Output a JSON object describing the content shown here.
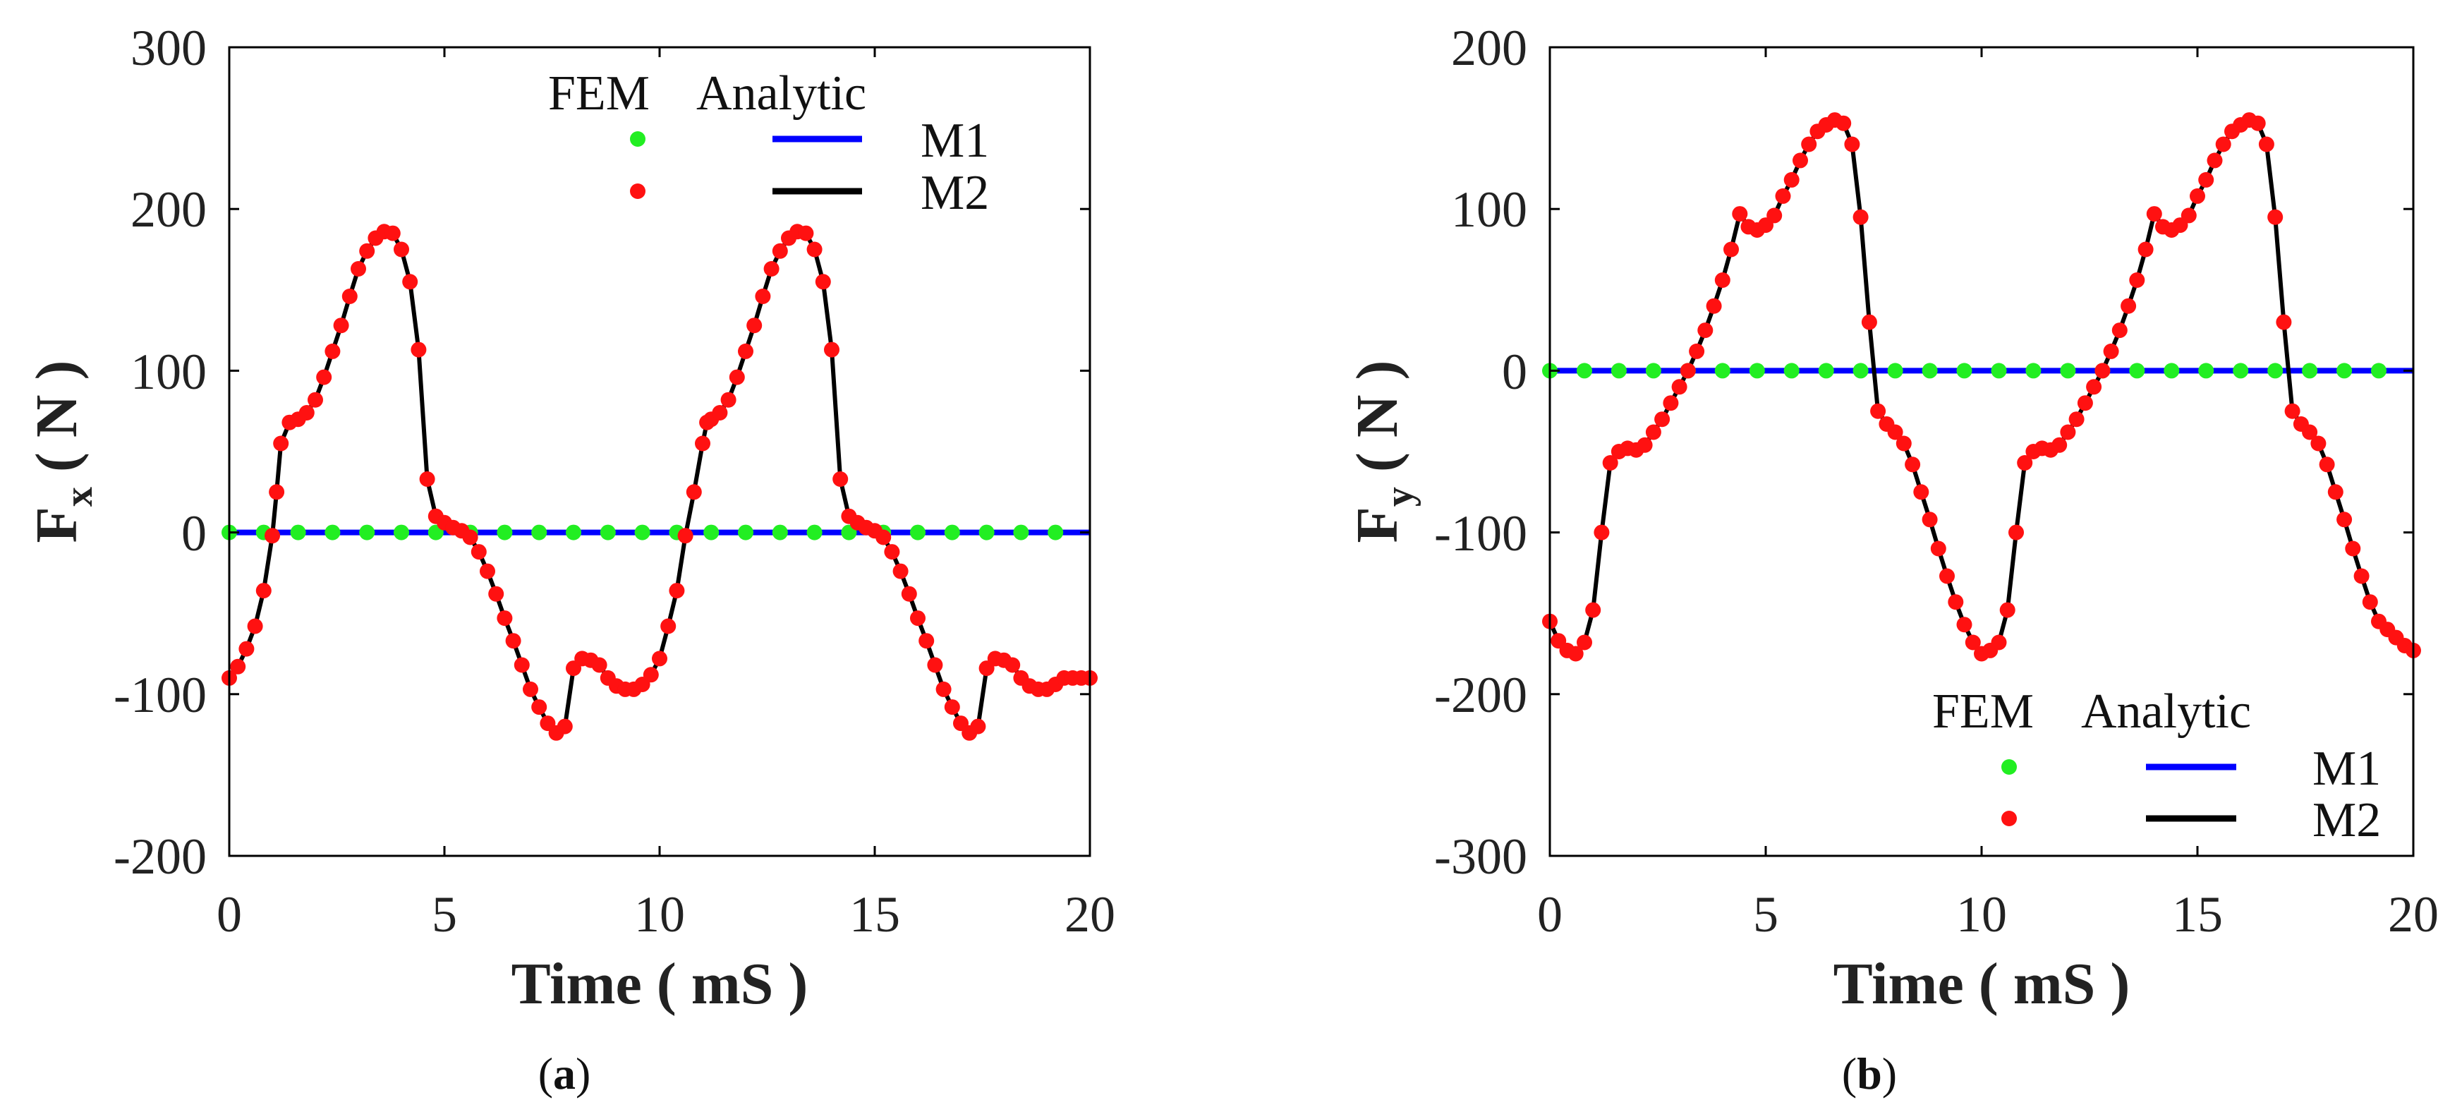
{
  "chart_data": [
    {
      "type": "line",
      "panel": "(a)",
      "caption_text": "a",
      "xlabel": "Time ( mS )",
      "ylabel_main": "F",
      "ylabel_sub": "x",
      "ylabel_unit": "( N )",
      "xlim": [
        0,
        20
      ],
      "ylim": [
        -200,
        300
      ],
      "xticks": [
        0,
        5,
        10,
        15,
        20
      ],
      "yticks": [
        -200,
        -100,
        0,
        100,
        200,
        300
      ],
      "xtick_labels": [
        "0",
        "5",
        "10",
        "15",
        "20"
      ],
      "ytick_labels": [
        "-200",
        "-100",
        "0",
        "100",
        "200",
        "300"
      ],
      "legend": {
        "placement": "top-right",
        "header_fem": "FEM",
        "header_analytic": "Analytic",
        "entries": [
          {
            "name": "M1",
            "fem_color": "#22ee22",
            "line_color": "#0000ff"
          },
          {
            "name": "M2",
            "fem_color": "#ff1111",
            "line_color": "#000000"
          }
        ]
      },
      "series": [
        {
          "name": "M1",
          "color": "#0000ff",
          "marker_color": "#22ee22",
          "x": [
            0,
            0.8,
            1.6,
            2.4,
            3.2,
            4.0,
            4.8,
            5.6,
            6.4,
            7.2,
            8.0,
            8.8,
            9.6,
            10.4,
            11.2,
            12.0,
            12.8,
            13.6,
            14.4,
            15.2,
            16.0,
            16.8,
            17.6,
            18.4,
            19.2
          ],
          "y": [
            0,
            0,
            0,
            0,
            0,
            0,
            0,
            0,
            0,
            0,
            0,
            0,
            0,
            0,
            0,
            0,
            0,
            0,
            0,
            0,
            0,
            0,
            0,
            0,
            0
          ]
        },
        {
          "name": "M2",
          "color": "#000000",
          "marker_color": "#ff1111",
          "x": [
            0,
            0.2,
            0.4,
            0.6,
            0.8,
            1.0,
            1.1,
            1.2,
            1.4,
            1.6,
            1.8,
            2.0,
            2.2,
            2.4,
            2.6,
            2.8,
            3.0,
            3.2,
            3.4,
            3.6,
            3.8,
            4.0,
            4.2,
            4.4,
            4.6,
            4.8,
            5.0,
            5.2,
            5.4,
            5.6,
            5.8,
            6.0,
            6.2,
            6.4,
            6.6,
            6.8,
            7.0,
            7.2,
            7.4,
            7.6,
            7.8,
            8.0,
            8.2,
            8.4,
            8.6,
            8.8,
            9.0,
            9.2,
            9.4,
            9.6,
            9.8,
            10.0,
            10.2,
            10.4,
            10.6,
            10.8,
            11.0,
            11.1,
            11.2,
            11.4,
            11.6,
            11.8,
            12.0,
            12.2,
            12.4,
            12.6,
            12.8,
            13.0,
            13.2,
            13.4,
            13.6,
            13.8,
            14.0,
            14.2,
            14.4,
            14.6,
            14.8,
            15.0,
            15.2,
            15.4,
            15.6,
            15.8,
            16.0,
            16.2,
            16.4,
            16.6,
            16.8,
            17.0,
            17.2,
            17.4,
            17.6,
            17.8,
            18.0,
            18.2,
            18.4,
            18.6,
            18.8,
            19.0,
            19.2,
            19.4,
            19.6,
            19.8,
            20.0
          ],
          "y": [
            -90,
            -83,
            -72,
            -58,
            -36,
            -2,
            25,
            55,
            68,
            70,
            74,
            82,
            96,
            112,
            128,
            146,
            163,
            174,
            182,
            186,
            185,
            175,
            155,
            113,
            33,
            10,
            6,
            3,
            1,
            -3,
            -12,
            -24,
            -38,
            -53,
            -67,
            -82,
            -97,
            -108,
            -118,
            -124,
            -120,
            -84,
            -78,
            -79,
            -82,
            -90,
            -95,
            -97,
            -97,
            -94,
            -88,
            -78,
            -58,
            -36,
            -2,
            25,
            55,
            68,
            70,
            74,
            82,
            96,
            112,
            128,
            146,
            163,
            174,
            182,
            186,
            185,
            175,
            155,
            113,
            33,
            10,
            6,
            3,
            1,
            -3,
            -12,
            -24,
            -38,
            -53,
            -67,
            -82,
            -97,
            -108,
            -118,
            -124,
            -120,
            -84,
            -78,
            -79,
            -82,
            -90,
            -95,
            -97,
            -97,
            -94,
            -90,
            -90,
            -90,
            -90
          ]
        }
      ]
    },
    {
      "type": "line",
      "panel": "(b)",
      "caption_text": "b",
      "xlabel": "Time ( mS )",
      "ylabel_main": "F",
      "ylabel_sub": "y",
      "ylabel_unit": "( N )",
      "xlim": [
        0,
        20
      ],
      "ylim": [
        -300,
        200
      ],
      "xticks": [
        0,
        5,
        10,
        15,
        20
      ],
      "yticks": [
        -300,
        -200,
        -100,
        0,
        100,
        200
      ],
      "xtick_labels": [
        "0",
        "5",
        "10",
        "15",
        "20"
      ],
      "ytick_labels": [
        "-300",
        "-200",
        "-100",
        "0",
        "100",
        "200"
      ],
      "legend": {
        "placement": "bottom-right",
        "header_fem": "FEM",
        "header_analytic": "Analytic",
        "entries": [
          {
            "name": "M1",
            "fem_color": "#22ee22",
            "line_color": "#0000ff"
          },
          {
            "name": "M2",
            "fem_color": "#ff1111",
            "line_color": "#000000"
          }
        ]
      },
      "series": [
        {
          "name": "M1",
          "color": "#0000ff",
          "marker_color": "#22ee22",
          "x": [
            0,
            0.8,
            1.6,
            2.4,
            3.2,
            4.0,
            4.8,
            5.6,
            6.4,
            7.2,
            8.0,
            8.8,
            9.6,
            10.4,
            11.2,
            12.0,
            12.8,
            13.6,
            14.4,
            15.2,
            16.0,
            16.8,
            17.6,
            18.4,
            19.2
          ],
          "y": [
            0,
            0,
            0,
            0,
            0,
            0,
            0,
            0,
            0,
            0,
            0,
            0,
            0,
            0,
            0,
            0,
            0,
            0,
            0,
            0,
            0,
            0,
            0,
            0,
            0
          ]
        },
        {
          "name": "M2",
          "color": "#000000",
          "marker_color": "#ff1111",
          "x": [
            0,
            0.2,
            0.4,
            0.6,
            0.8,
            1.0,
            1.2,
            1.4,
            1.6,
            1.8,
            2.0,
            2.2,
            2.4,
            2.6,
            2.8,
            3.0,
            3.2,
            3.4,
            3.6,
            3.8,
            4.0,
            4.2,
            4.4,
            4.6,
            4.8,
            5.0,
            5.2,
            5.4,
            5.6,
            5.8,
            6.0,
            6.2,
            6.4,
            6.6,
            6.8,
            7.0,
            7.2,
            7.4,
            7.6,
            7.8,
            8.0,
            8.2,
            8.4,
            8.6,
            8.8,
            9.0,
            9.2,
            9.4,
            9.6,
            9.8,
            10.0,
            10.2,
            10.4,
            10.6,
            10.8,
            11.0,
            11.2,
            11.4,
            11.6,
            11.8,
            12.0,
            12.2,
            12.4,
            12.6,
            12.8,
            13.0,
            13.2,
            13.4,
            13.6,
            13.8,
            14.0,
            14.2,
            14.4,
            14.6,
            14.8,
            15.0,
            15.2,
            15.4,
            15.6,
            15.8,
            16.0,
            16.2,
            16.4,
            16.6,
            16.8,
            17.0,
            17.2,
            17.4,
            17.6,
            17.8,
            18.0,
            18.2,
            18.4,
            18.6,
            18.8,
            19.0,
            19.2,
            19.4,
            19.6,
            19.8,
            20.0
          ],
          "y": [
            -155,
            -167,
            -173,
            -175,
            -168,
            -148,
            -100,
            -57,
            -50,
            -48,
            -49,
            -46,
            -38,
            -30,
            -20,
            -10,
            0,
            12,
            25,
            40,
            56,
            75,
            97,
            89,
            87,
            90,
            96,
            108,
            118,
            130,
            140,
            148,
            152,
            155,
            153,
            140,
            95,
            30,
            -25,
            -33,
            -38,
            -45,
            -58,
            -75,
            -92,
            -110,
            -127,
            -143,
            -157,
            -168,
            -175,
            -173,
            -168,
            -148,
            -100,
            -57,
            -50,
            -48,
            -49,
            -46,
            -38,
            -30,
            -20,
            -10,
            0,
            12,
            25,
            40,
            56,
            75,
            97,
            89,
            87,
            90,
            96,
            108,
            118,
            130,
            140,
            148,
            152,
            155,
            153,
            140,
            95,
            30,
            -25,
            -33,
            -38,
            -45,
            -58,
            -75,
            -92,
            -110,
            -127,
            -143,
            -155,
            -160,
            -165,
            -170,
            -173
          ]
        }
      ]
    }
  ]
}
